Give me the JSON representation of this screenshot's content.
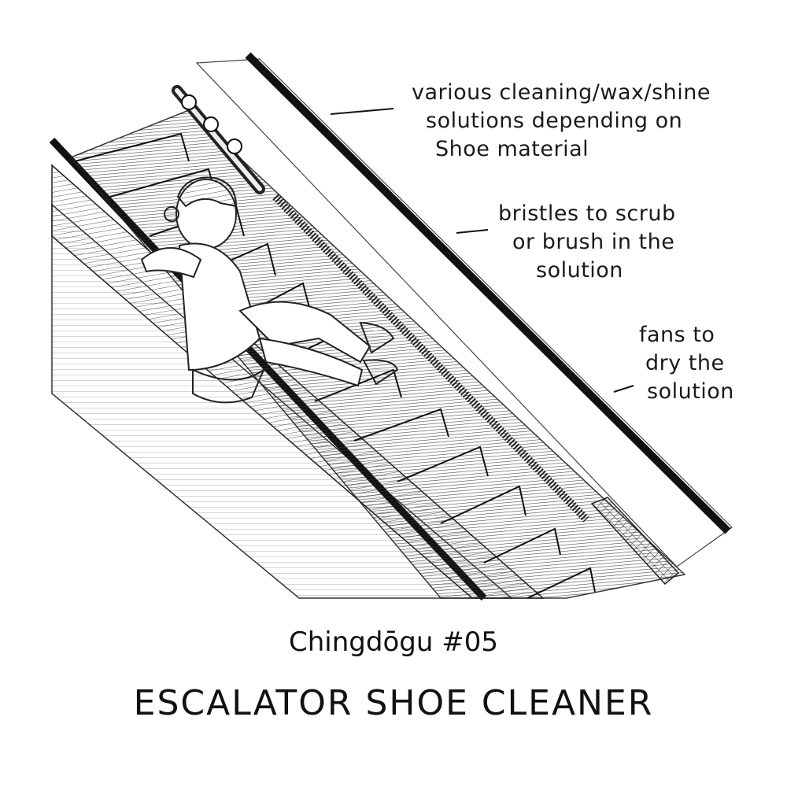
{
  "annotations": {
    "cleaning_solutions": [
      "various cleaning/wax/shine",
      "solutions depending on",
      "Shoe material"
    ],
    "bristles": [
      "bristles to scrub",
      "or brush in the",
      "solution"
    ],
    "fans": [
      "fans to",
      "dry the",
      "solution"
    ]
  },
  "caption": {
    "series": "Chingdōgu #05",
    "title": "ESCALATOR SHOE CLEANER"
  }
}
